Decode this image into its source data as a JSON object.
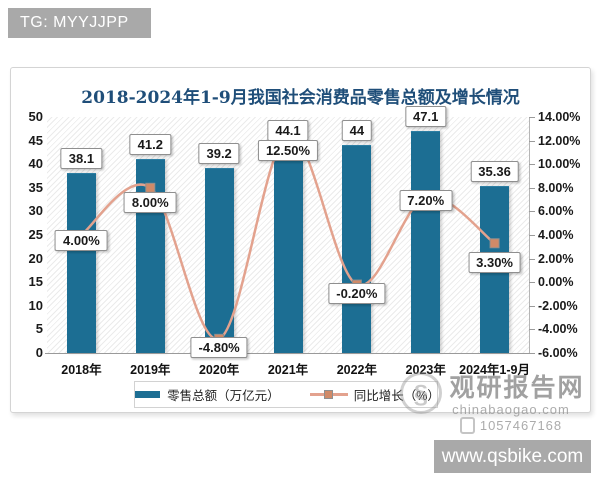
{
  "header": {
    "tag_label": "TG: MYYJJPP"
  },
  "colors": {
    "bar": "#1c6e93",
    "line": "#e3a28e",
    "marker": "#d08a68",
    "title": "#1f4e79",
    "watermark_gray": "#a9a9a9"
  },
  "chart_data": {
    "type": "bar",
    "title": "2018-2024年1-9月我国社会消费品零售总额及增长情况",
    "categories": [
      "2018年",
      "2019年",
      "2020年",
      "2021年",
      "2022年",
      "2023年",
      "2024年1-9月"
    ],
    "series": [
      {
        "name": "零售总额（万亿元）",
        "chart": "bar",
        "axis": "left",
        "color": "#1c6e93",
        "values": [
          38.1,
          41.2,
          39.2,
          44.1,
          44,
          47.1,
          35.36
        ],
        "labels": [
          "38.1",
          "41.2",
          "39.2",
          "44.1",
          "44",
          "47.1",
          "35.36"
        ]
      },
      {
        "name": "同比增长（%）",
        "chart": "line",
        "axis": "right",
        "color": "#e3a28e",
        "marker_color": "#d08a68",
        "values": [
          4.0,
          8.0,
          -4.8,
          12.5,
          -0.2,
          7.2,
          3.3
        ],
        "labels": [
          "4.00%",
          "8.00%",
          "-4.80%",
          "12.50%",
          "-0.20%",
          "7.20%",
          "3.30%"
        ],
        "label_dy": [
          -5,
          4,
          -2,
          5,
          -2,
          -7,
          9
        ]
      }
    ],
    "left_axis": {
      "min": 0,
      "max": 50,
      "step": 5,
      "ticks": [
        "50",
        "45",
        "40",
        "35",
        "30",
        "25",
        "20",
        "15",
        "10",
        "5",
        "0"
      ]
    },
    "right_axis": {
      "min": -6,
      "max": 14,
      "step": 2,
      "ticks": [
        "14.00%",
        "12.00%",
        "10.00%",
        "8.00%",
        "6.00%",
        "4.00%",
        "2.00%",
        "0.00%",
        "-2.00%",
        "-4.00%",
        "-6.00%"
      ]
    },
    "legend_position": "bottom",
    "grid": false,
    "plot_background": "diagonal-hatch"
  },
  "watermark": {
    "brand": "观研报告网",
    "site": "chinabaogao.com",
    "number": "1057467168"
  },
  "footer": {
    "site": "www.qsbike.com"
  }
}
